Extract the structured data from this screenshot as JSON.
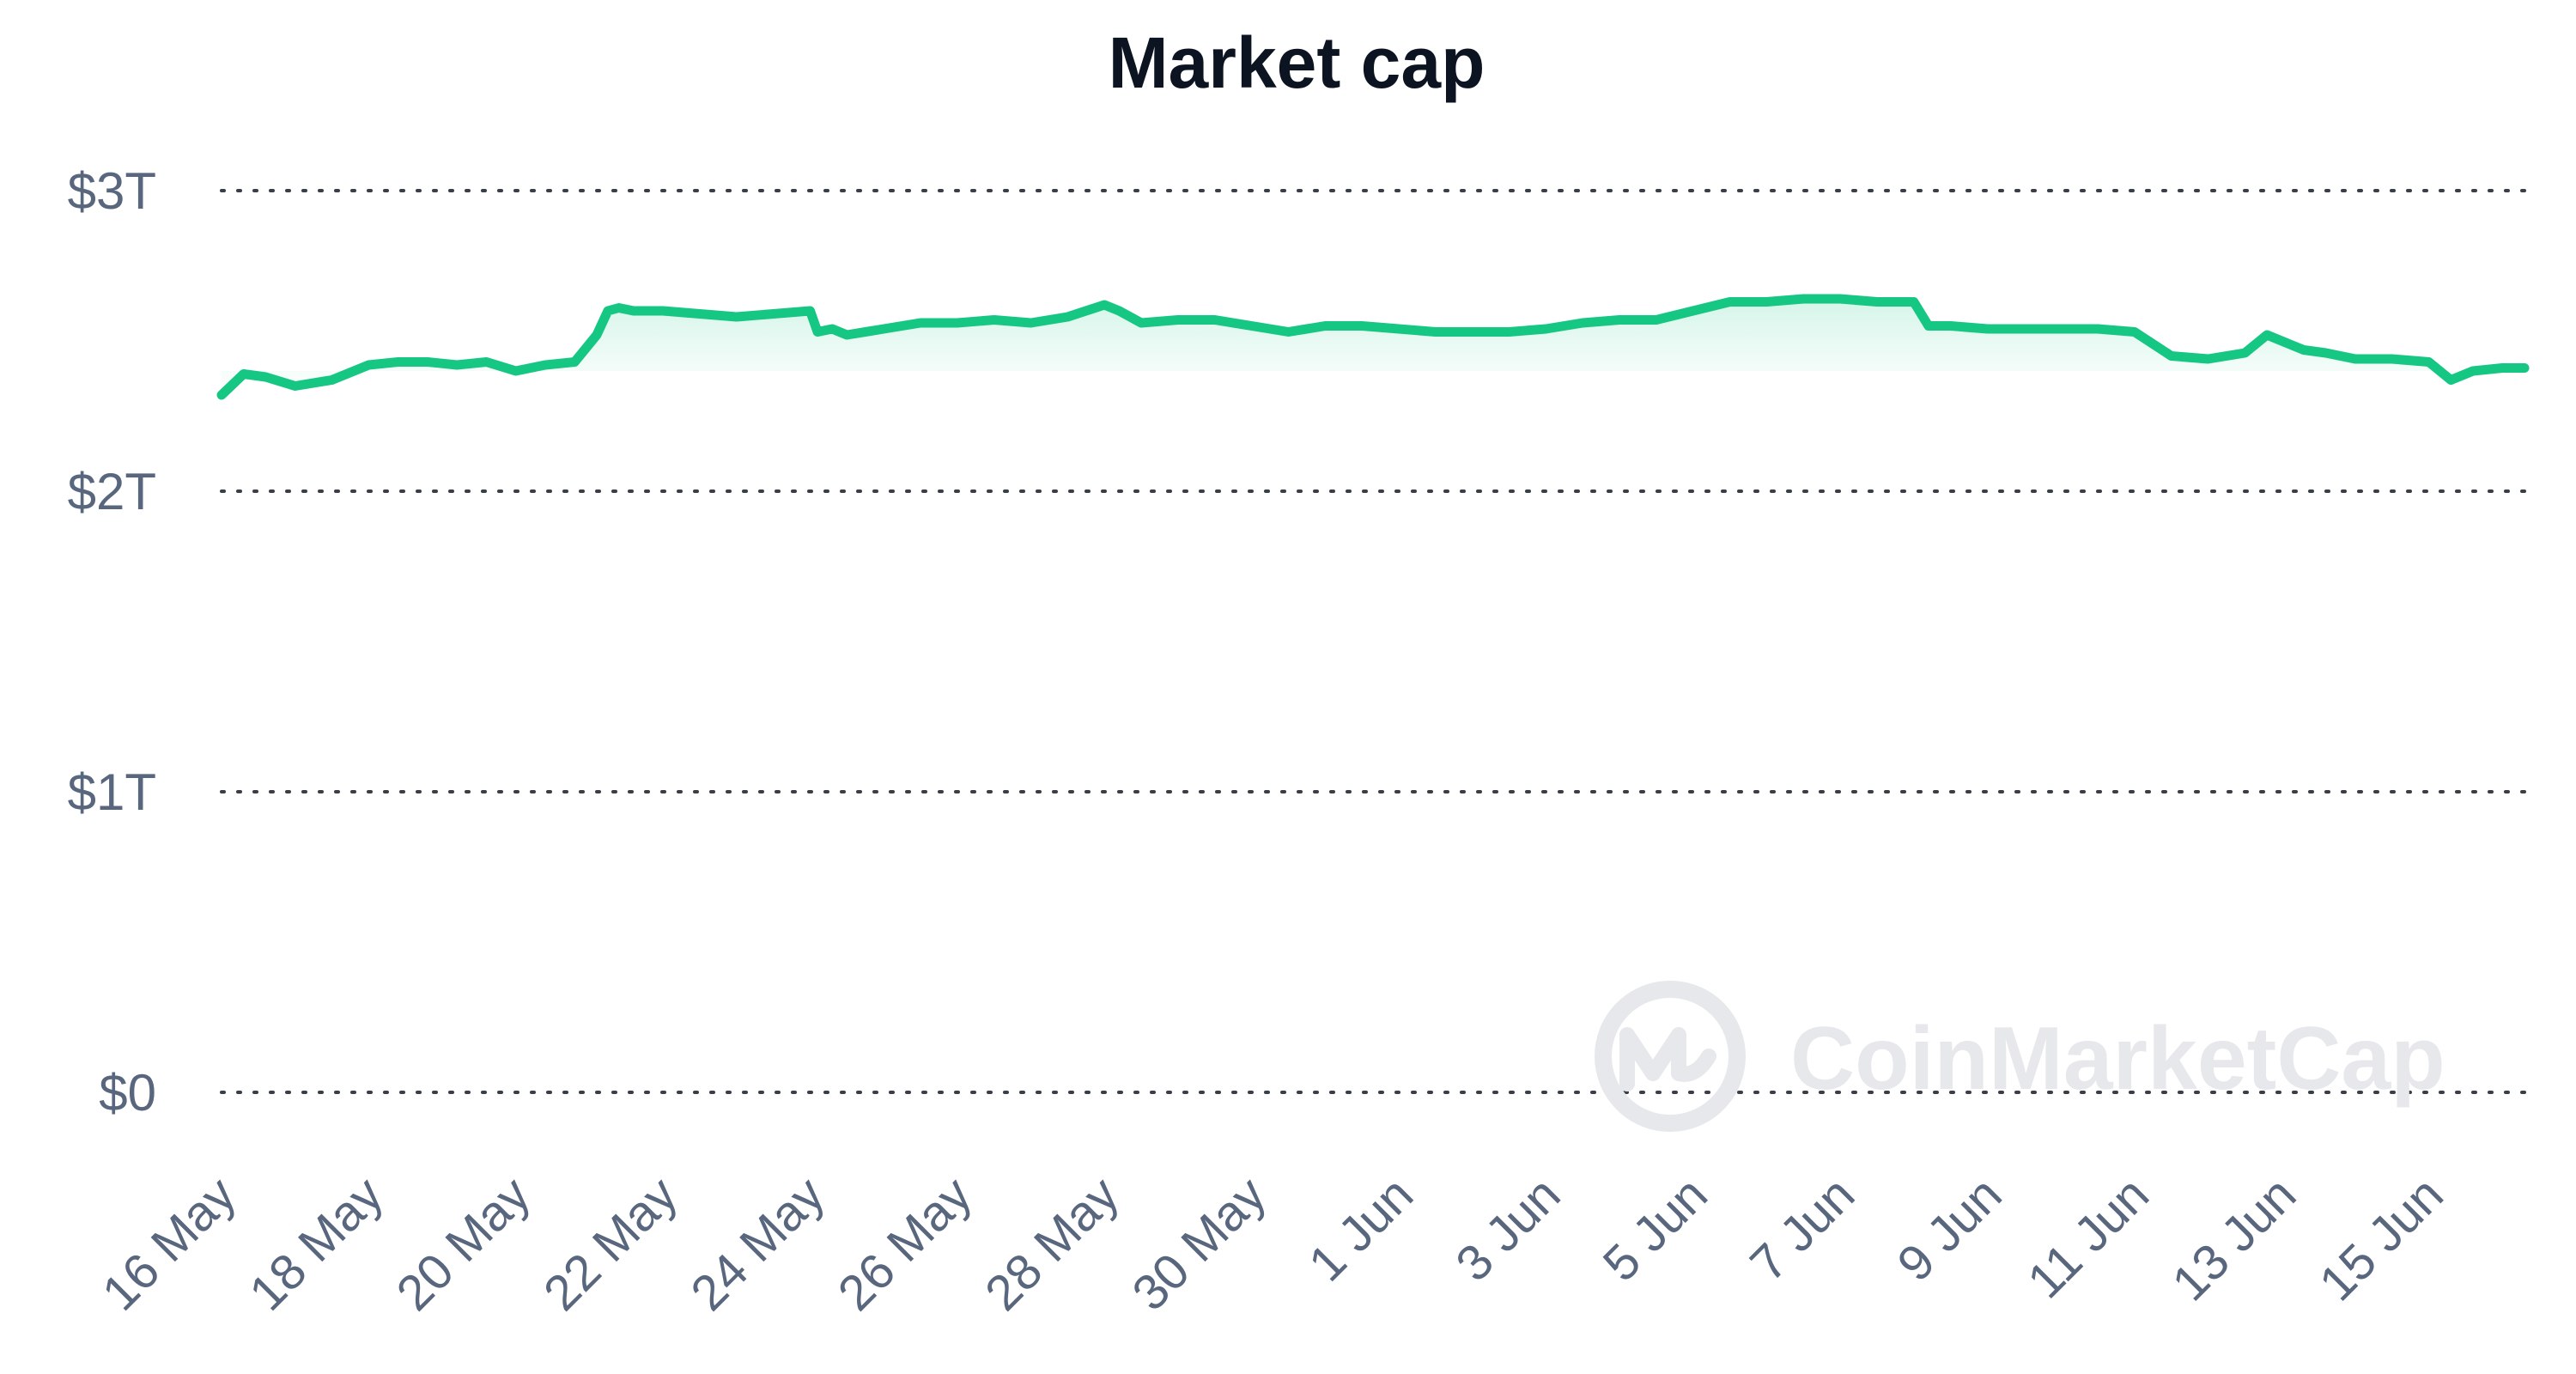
{
  "chart_data": {
    "type": "area",
    "title": "Market cap",
    "xlabel": "",
    "ylabel": "",
    "ylim": [
      0,
      3
    ],
    "y_unit": "trillion USD",
    "yticks": [
      {
        "value": 3,
        "label": "$3T"
      },
      {
        "value": 2,
        "label": "$2T"
      },
      {
        "value": 1,
        "label": "$1T"
      },
      {
        "value": 0,
        "label": "$0"
      }
    ],
    "xlim": [
      0,
      31.3
    ],
    "x_unit": "days since 16 May",
    "xticks": [
      {
        "value": 0,
        "label": "16 May"
      },
      {
        "value": 2,
        "label": "18 May"
      },
      {
        "value": 4,
        "label": "20 May"
      },
      {
        "value": 6,
        "label": "22 May"
      },
      {
        "value": 8,
        "label": "24 May"
      },
      {
        "value": 10,
        "label": "26 May"
      },
      {
        "value": 12,
        "label": "28 May"
      },
      {
        "value": 14,
        "label": "30 May"
      },
      {
        "value": 16,
        "label": "1 Jun"
      },
      {
        "value": 18,
        "label": "3 Jun"
      },
      {
        "value": 20,
        "label": "5 Jun"
      },
      {
        "value": 22,
        "label": "7 Jun"
      },
      {
        "value": 24,
        "label": "9 Jun"
      },
      {
        "value": 26,
        "label": "11 Jun"
      },
      {
        "value": 28,
        "label": "13 Jun"
      },
      {
        "value": 30,
        "label": "15 Jun"
      }
    ],
    "grid": true,
    "series": [
      {
        "name": "Market cap",
        "color": "#16c784",
        "x": [
          0,
          0.3,
          0.6,
          1.0,
          1.5,
          2.0,
          2.4,
          2.8,
          3.2,
          3.6,
          4.0,
          4.4,
          4.8,
          5.1,
          5.25,
          5.4,
          5.6,
          6.0,
          6.5,
          7.0,
          7.5,
          8.0,
          8.1,
          8.3,
          8.5,
          9.0,
          9.5,
          10.0,
          10.5,
          11.0,
          11.5,
          12.0,
          12.2,
          12.5,
          13.0,
          13.5,
          14.0,
          14.5,
          15.0,
          15.5,
          16.0,
          16.5,
          17.0,
          17.5,
          18.0,
          18.5,
          19.0,
          19.5,
          20.0,
          20.5,
          21.0,
          21.5,
          22.0,
          22.5,
          23.0,
          23.2,
          23.5,
          24.0,
          24.5,
          25.0,
          25.5,
          26.0,
          26.5,
          27.0,
          27.5,
          27.8,
          28.0,
          28.3,
          28.6,
          29.0,
          29.5,
          30.0,
          30.3,
          30.6,
          31.0,
          31.3
        ],
        "values": [
          2.32,
          2.39,
          2.38,
          2.35,
          2.37,
          2.42,
          2.43,
          2.43,
          2.42,
          2.43,
          2.4,
          2.42,
          2.43,
          2.52,
          2.6,
          2.61,
          2.6,
          2.6,
          2.59,
          2.58,
          2.59,
          2.6,
          2.53,
          2.54,
          2.52,
          2.54,
          2.56,
          2.56,
          2.57,
          2.56,
          2.58,
          2.62,
          2.6,
          2.56,
          2.57,
          2.57,
          2.55,
          2.53,
          2.55,
          2.55,
          2.54,
          2.53,
          2.53,
          2.53,
          2.54,
          2.56,
          2.57,
          2.57,
          2.6,
          2.63,
          2.63,
          2.64,
          2.64,
          2.63,
          2.63,
          2.55,
          2.55,
          2.54,
          2.54,
          2.54,
          2.54,
          2.53,
          2.45,
          2.44,
          2.46,
          2.52,
          2.5,
          2.47,
          2.46,
          2.44,
          2.44,
          2.43,
          2.37,
          2.4,
          2.41,
          2.41
        ]
      }
    ]
  },
  "watermark": {
    "text": "CoinMarketCap"
  }
}
